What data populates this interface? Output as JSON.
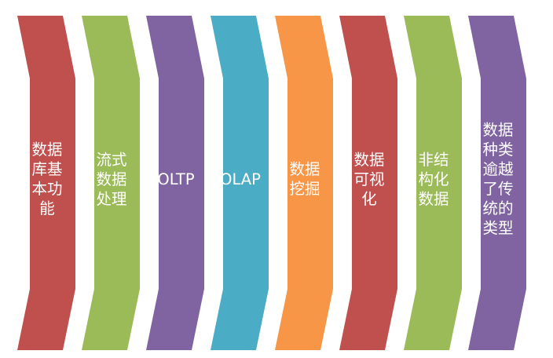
{
  "panels": [
    {
      "label": "数据库基本功能",
      "color": "#c0504d"
    },
    {
      "label": "流式数据处理",
      "color": "#9bbb59"
    },
    {
      "label": "OLTP",
      "color": "#8064a2"
    },
    {
      "label": "OLAP",
      "color": "#4bacc6"
    },
    {
      "label": "数据挖掘",
      "color": "#f79646"
    },
    {
      "label": "数据可视化",
      "color": "#c0504d"
    },
    {
      "label": "非结构化数据",
      "color": "#9bbb59"
    },
    {
      "label": "数据种类逾越了传统的类型",
      "color": "#8064a2"
    }
  ]
}
